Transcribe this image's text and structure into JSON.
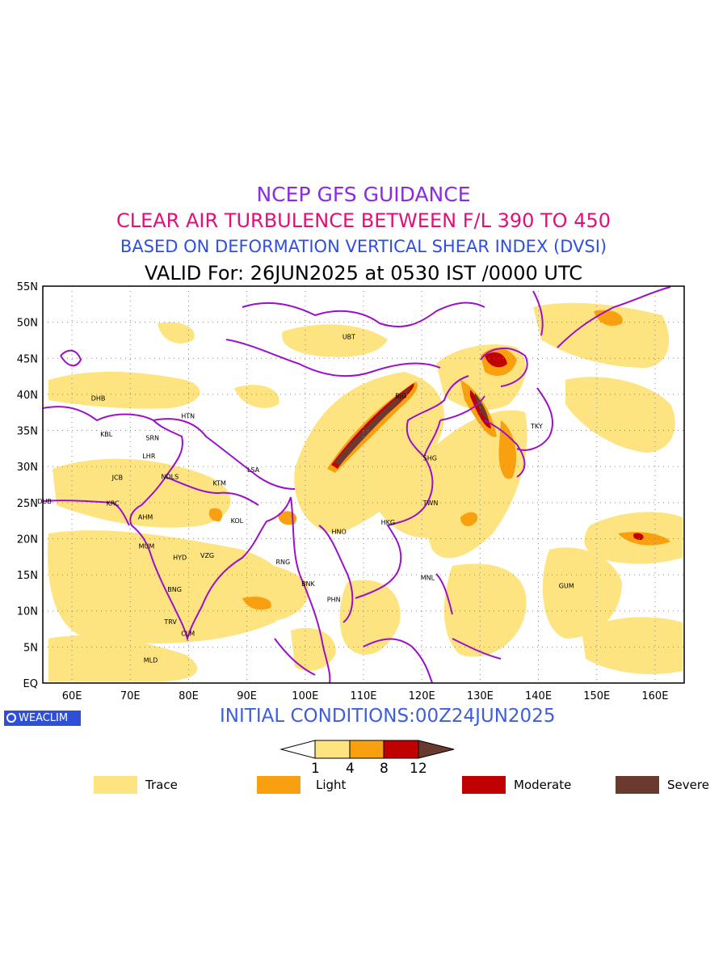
{
  "titles": {
    "line1": "NCEP GFS GUIDANCE",
    "line2": "CLEAR AIR TURBULENCE BETWEEN F/L 390 TO 450",
    "line3": "BASED ON DEFORMATION VERTICAL SHEAR INDEX (DVSI)",
    "line4": "VALID For: 26JUN2025 at 0530 IST /0000 UTC"
  },
  "colors": {
    "line1": "#8a2be2",
    "line2": "#e0107a",
    "line3": "#2d4fe6",
    "border": "#9b10c8",
    "trace": "#fde480",
    "light": "#f8a010",
    "moderate": "#c00000",
    "severe": "#6b3a2e"
  },
  "axes": {
    "y_labels": [
      "55N",
      "50N",
      "45N",
      "40N",
      "35N",
      "30N",
      "25N",
      "20N",
      "15N",
      "10N",
      "5N",
      "EQ"
    ],
    "x_labels": [
      "60E",
      "70E",
      "80E",
      "90E",
      "100E",
      "110E",
      "120E",
      "130E",
      "140E",
      "150E",
      "160E"
    ],
    "lon_range": [
      55,
      165
    ],
    "lat_range": [
      0,
      55
    ],
    "grid": "dotted"
  },
  "cities": [
    {
      "code": "UBT",
      "lon": 107.5,
      "lat": 48.0
    },
    {
      "code": "BJG",
      "lon": 116.4,
      "lat": 39.8
    },
    {
      "code": "DHB",
      "lon": 64.5,
      "lat": 39.5
    },
    {
      "code": "HTN",
      "lon": 79.9,
      "lat": 37.0
    },
    {
      "code": "KBL",
      "lon": 65.9,
      "lat": 34.5
    },
    {
      "code": "SRN",
      "lon": 73.8,
      "lat": 34.0
    },
    {
      "code": "TKY",
      "lon": 139.7,
      "lat": 35.6
    },
    {
      "code": "LHR",
      "lon": 73.2,
      "lat": 31.5
    },
    {
      "code": "SHG",
      "lon": 121.4,
      "lat": 31.2
    },
    {
      "code": "LSA",
      "lon": 91.1,
      "lat": 29.6
    },
    {
      "code": "JCB",
      "lon": 67.8,
      "lat": 28.5
    },
    {
      "code": "NDLS",
      "lon": 76.8,
      "lat": 28.6
    },
    {
      "code": "KTM",
      "lon": 85.3,
      "lat": 27.7
    },
    {
      "code": "DUB",
      "lon": 55.3,
      "lat": 25.2
    },
    {
      "code": "KRC",
      "lon": 67.0,
      "lat": 24.9
    },
    {
      "code": "TWN",
      "lon": 121.5,
      "lat": 25.0
    },
    {
      "code": "AHM",
      "lon": 72.6,
      "lat": 23.0
    },
    {
      "code": "KOL",
      "lon": 88.3,
      "lat": 22.5
    },
    {
      "code": "HNO",
      "lon": 105.8,
      "lat": 21.0
    },
    {
      "code": "HKG",
      "lon": 114.2,
      "lat": 22.3
    },
    {
      "code": "MUM",
      "lon": 72.8,
      "lat": 19.0
    },
    {
      "code": "HYD",
      "lon": 78.5,
      "lat": 17.4
    },
    {
      "code": "VZG",
      "lon": 83.2,
      "lat": 17.7
    },
    {
      "code": "RNG",
      "lon": 96.2,
      "lat": 16.8
    },
    {
      "code": "MNL",
      "lon": 121.0,
      "lat": 14.6
    },
    {
      "code": "BNK",
      "lon": 100.5,
      "lat": 13.8
    },
    {
      "code": "GUM",
      "lon": 144.8,
      "lat": 13.5
    },
    {
      "code": "BNG",
      "lon": 77.6,
      "lat": 13.0
    },
    {
      "code": "PHN",
      "lon": 104.9,
      "lat": 11.6
    },
    {
      "code": "TRV",
      "lon": 76.9,
      "lat": 8.5
    },
    {
      "code": "CLM",
      "lon": 79.9,
      "lat": 6.9
    },
    {
      "code": "MLD",
      "lon": 73.5,
      "lat": 3.2
    }
  ],
  "badge": "WEACLIM",
  "initial_conditions": "INITIAL CONDITIONS:00Z24JUN2025",
  "colorbar": {
    "ticks": [
      "1",
      "4",
      "8",
      "12"
    ]
  },
  "legend": [
    {
      "label": "Trace",
      "color": "#fde480"
    },
    {
      "label": "Light",
      "color": "#f8a010"
    },
    {
      "label": "Moderate",
      "color": "#c00000"
    },
    {
      "label": "Severe",
      "color": "#6b3a2e"
    }
  ]
}
